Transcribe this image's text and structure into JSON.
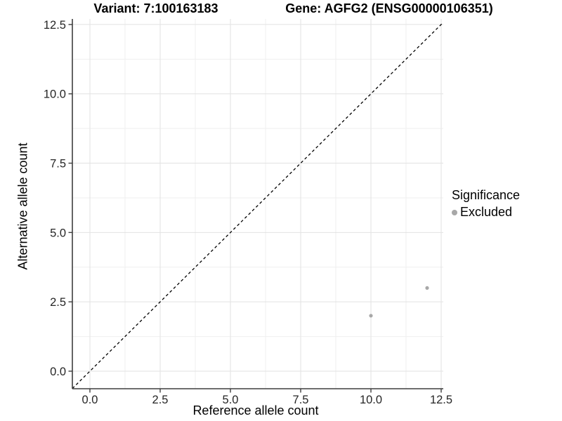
{
  "chart_data": {
    "type": "scatter",
    "titles": {
      "left": "Variant: 7:100163183",
      "right": "Gene: AGFG2 (ENSG00000106351)"
    },
    "xlabel": "Reference allele count",
    "ylabel": "Alternative allele count",
    "xlim": [
      -0.625,
      12.575
    ],
    "ylim": [
      -0.633,
      12.7
    ],
    "x_ticks": [
      0.0,
      2.5,
      5.0,
      7.5,
      10.0,
      12.5
    ],
    "y_ticks": [
      0.0,
      2.5,
      5.0,
      7.5,
      10.0,
      12.5
    ],
    "tick_decimals": 1,
    "minor_grid_interval": 1.25,
    "grid": true,
    "identity_line": {
      "style": "dashed",
      "color": "#000000"
    },
    "series": [
      {
        "name": "Excluded",
        "color": "#a8a8a8",
        "points": [
          [
            10,
            2
          ],
          [
            12,
            3
          ]
        ]
      }
    ],
    "legend": {
      "title": "Significance",
      "position": "right",
      "items": [
        {
          "label": "Excluded",
          "color": "#a8a8a8"
        }
      ]
    },
    "colors": {
      "background": "#ffffff",
      "grid_major": "#e2e2e2",
      "grid_minor": "#efefef",
      "axis_line": "#3d3d3d",
      "tick_label": "#262626",
      "point": "#a8a8a8"
    }
  }
}
